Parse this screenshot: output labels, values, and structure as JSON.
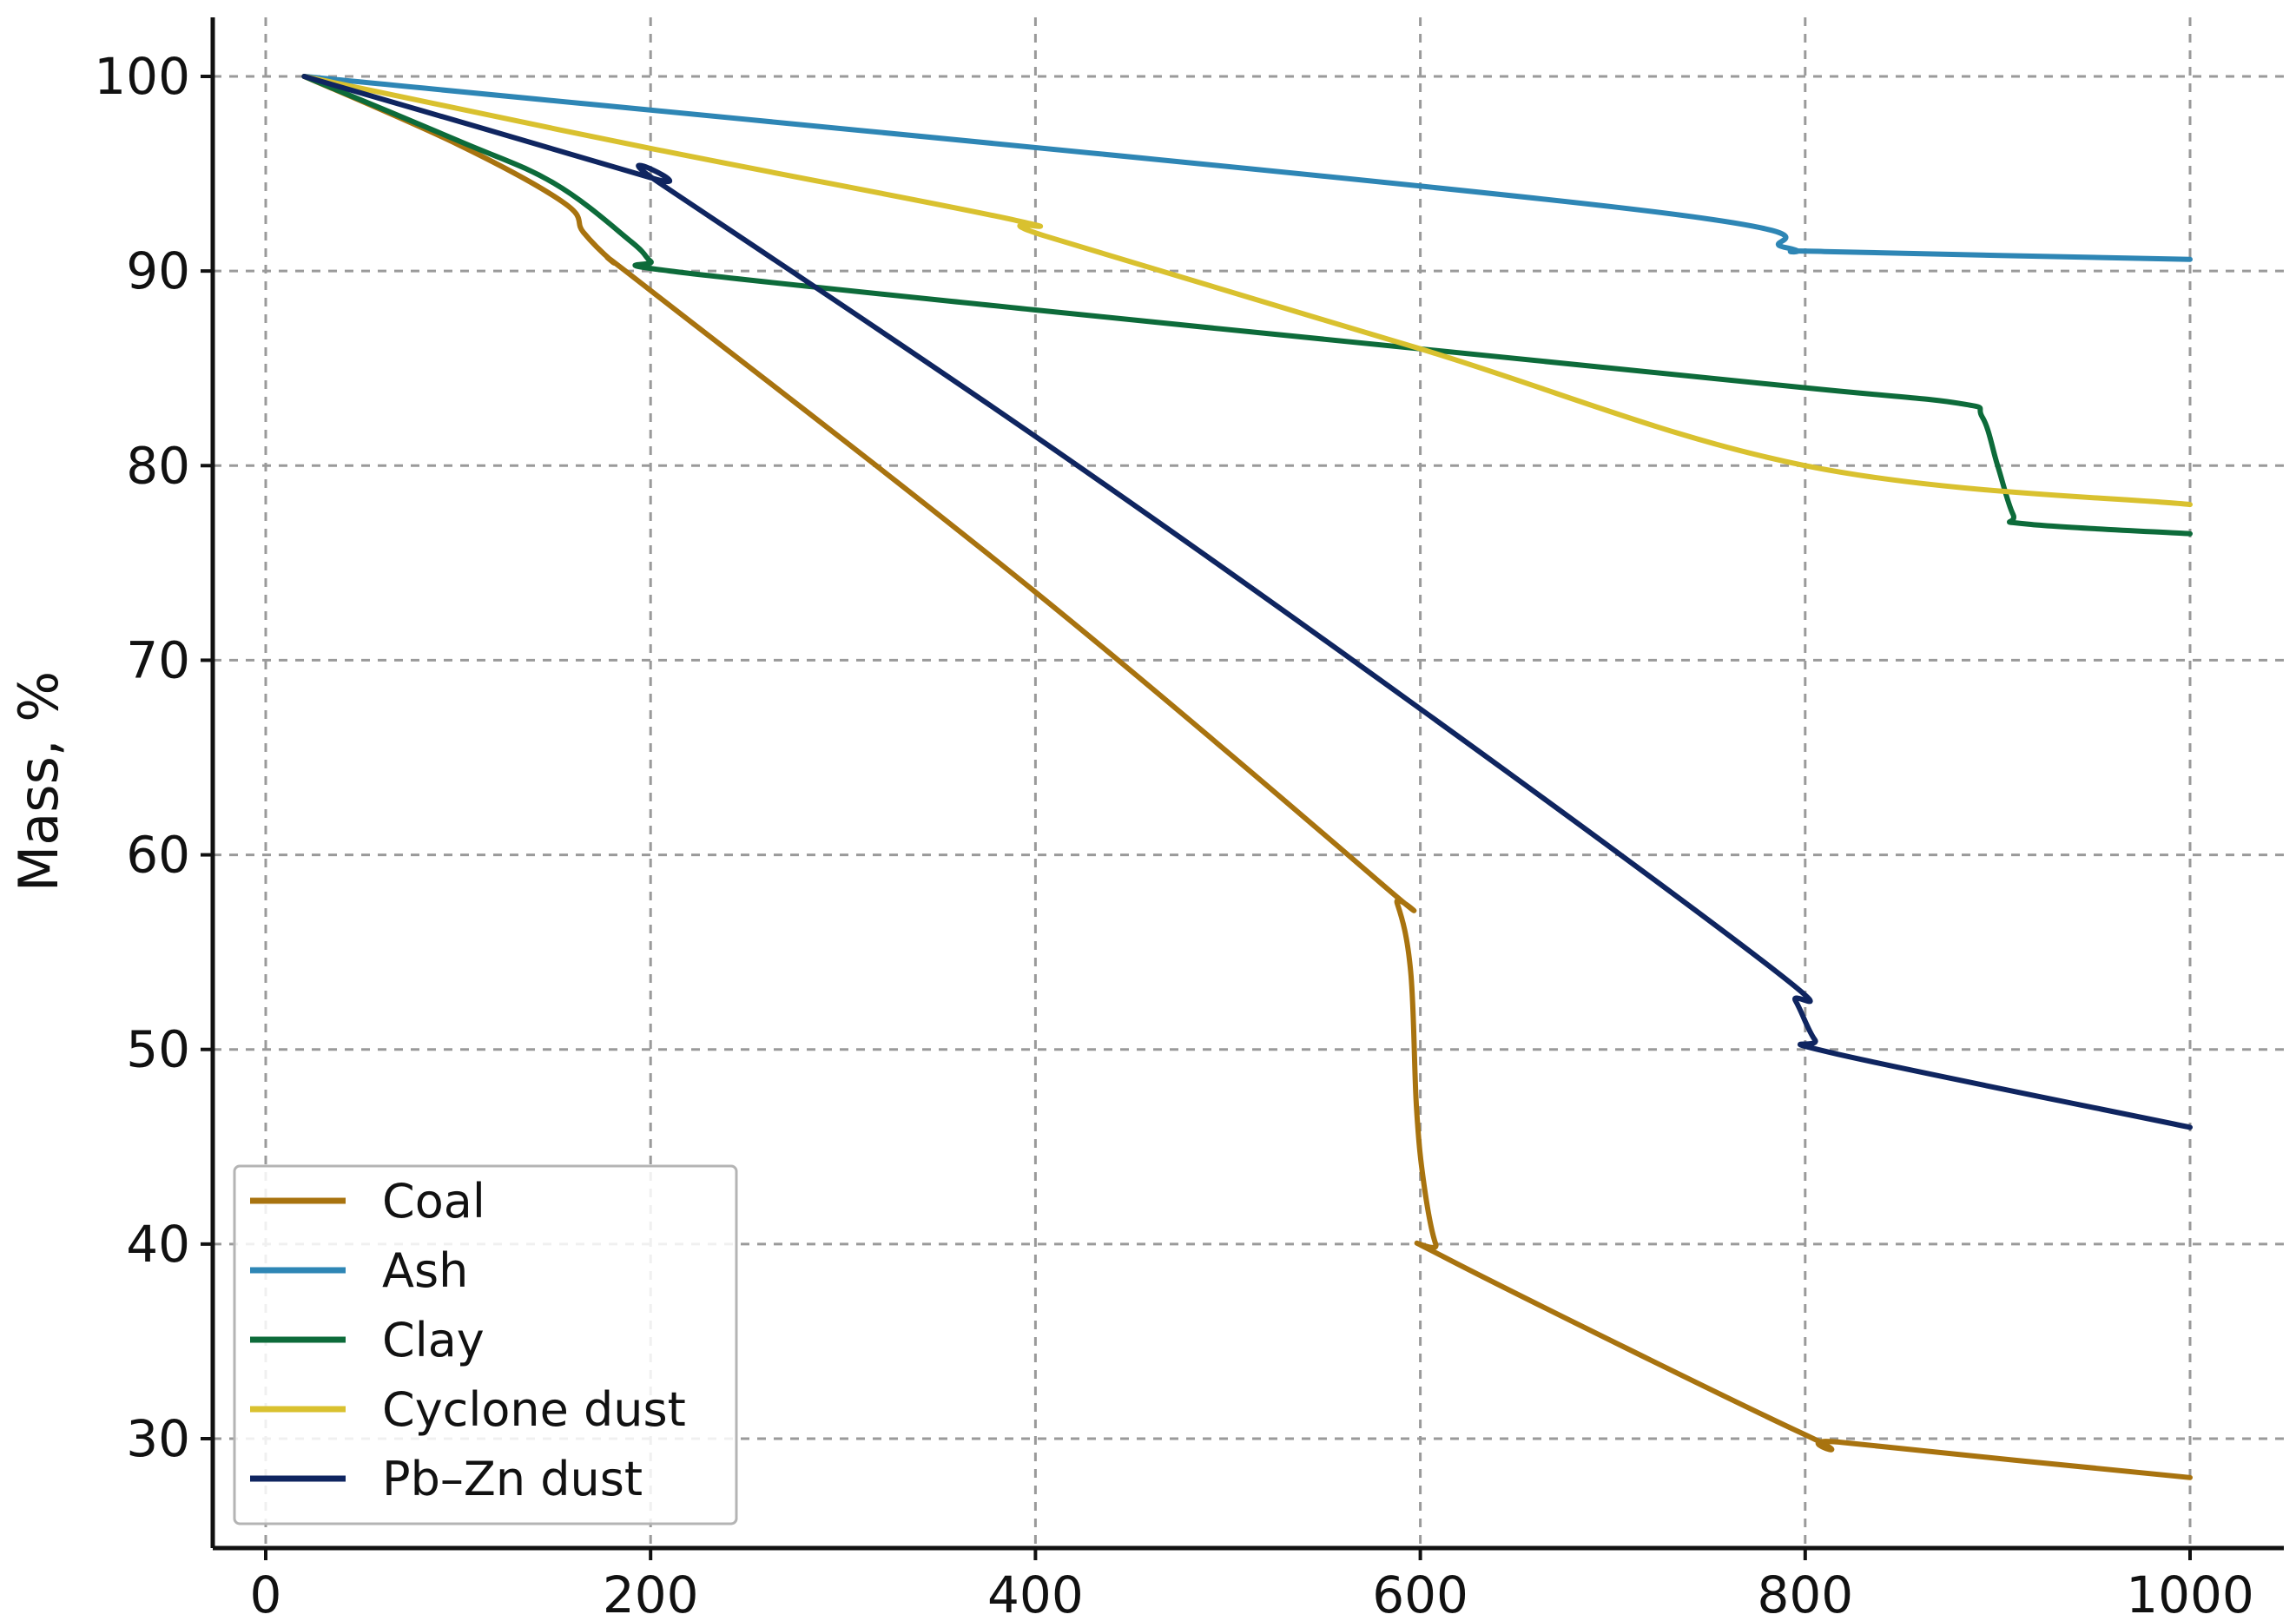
{
  "chart_data": {
    "type": "line",
    "title": "",
    "xlabel": "",
    "ylabel": "Mass, %",
    "xlim": [
      -70,
      1025
    ],
    "ylim": [
      25,
      103
    ],
    "xticks": [
      0,
      200,
      400,
      600,
      800,
      1000
    ],
    "yticks": [
      30,
      40,
      50,
      60,
      70,
      80,
      90,
      100
    ],
    "xtick_labels": [
      "0",
      "200",
      "400",
      "600",
      "800",
      "1000"
    ],
    "ytick_labels": [
      "30",
      "40",
      "50",
      "60",
      "70",
      "80",
      "90",
      "100"
    ],
    "grid": true,
    "legend_position": "lower-left",
    "series": [
      {
        "name": "Coal",
        "color": "#a8730f",
        "points": [
          [
            20,
            100
          ],
          [
            100,
            96.5
          ],
          [
            155,
            93.5
          ],
          [
            165,
            92
          ],
          [
            180,
            90.5
          ],
          [
            200,
            89
          ],
          [
            400,
            73.5
          ],
          [
            580,
            58.5
          ],
          [
            588,
            57.5
          ],
          [
            595,
            54
          ],
          [
            598,
            47
          ],
          [
            602,
            43
          ],
          [
            608,
            40
          ],
          [
            615,
            39.2
          ],
          [
            800,
            30.2
          ],
          [
            820,
            29.8
          ],
          [
            1000,
            28
          ]
        ]
      },
      {
        "name": "Ash",
        "color": "#2e86b5",
        "points": [
          [
            20,
            100
          ],
          [
            700,
            93.3
          ],
          [
            790,
            91.2
          ],
          [
            810,
            91
          ],
          [
            1000,
            90.6
          ]
        ]
      },
      {
        "name": "Clay",
        "color": "#0d6b3a",
        "points": [
          [
            20,
            100
          ],
          [
            100,
            96.7
          ],
          [
            150,
            94.5
          ],
          [
            190,
            91.5
          ],
          [
            200,
            90.5
          ],
          [
            210,
            90
          ],
          [
            400,
            88
          ],
          [
            600,
            86
          ],
          [
            800,
            84
          ],
          [
            880,
            83.2
          ],
          [
            892,
            82.5
          ],
          [
            900,
            80
          ],
          [
            908,
            77.5
          ],
          [
            915,
            77
          ],
          [
            1000,
            76.5
          ]
        ]
      },
      {
        "name": "Cyclone dust",
        "color": "#d9c12f",
        "points": [
          [
            20,
            100
          ],
          [
            200,
            96.3
          ],
          [
            390,
            92.6
          ],
          [
            405,
            91.8
          ],
          [
            600,
            86
          ],
          [
            800,
            80
          ],
          [
            1000,
            78
          ]
        ]
      },
      {
        "name": "Pb–Zn dust",
        "color": "#0f2560",
        "points": [
          [
            20,
            100
          ],
          [
            200,
            94.8
          ],
          [
            205,
            94.5
          ],
          [
            400,
            81.5
          ],
          [
            600,
            67.5
          ],
          [
            785,
            54
          ],
          [
            795,
            52.5
          ],
          [
            805,
            50.5
          ],
          [
            815,
            49.8
          ],
          [
            1000,
            46
          ]
        ]
      }
    ]
  }
}
